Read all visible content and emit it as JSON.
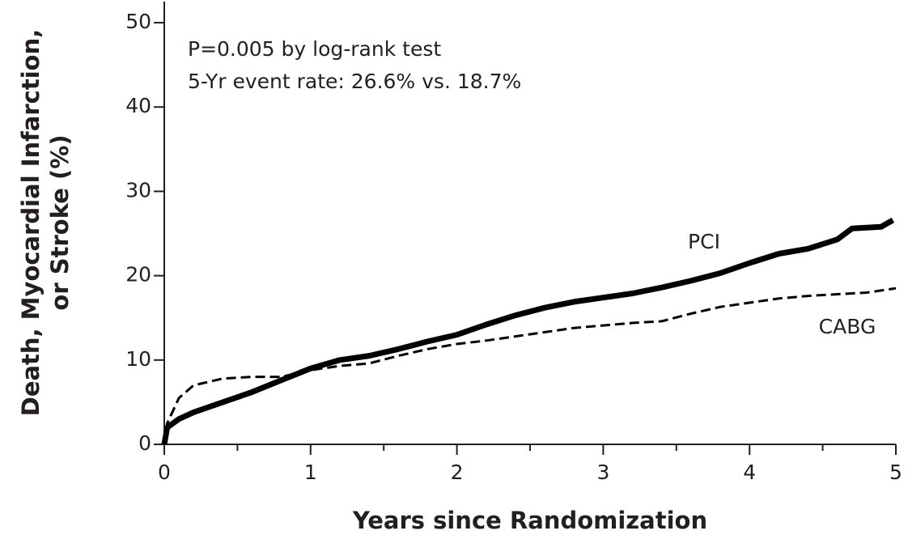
{
  "chart_data": {
    "type": "line",
    "annotations": [
      "P=0.005 by log-rank test",
      "5-Yr event rate: 26.6% vs. 18.7%"
    ],
    "x_label": "Years since Randomization",
    "y_label": [
      "Death, Myocardial Infarction,",
      "or Stroke (%)"
    ],
    "xlim": [
      0,
      5
    ],
    "xticks": [
      0,
      1,
      2,
      3,
      4,
      5
    ],
    "xminor_ticks": [
      0.5,
      1.5,
      2.5,
      3.5,
      4.5
    ],
    "ylim": [
      0,
      52.5
    ],
    "yticks": [
      0,
      10,
      20,
      30,
      40,
      50
    ],
    "series": [
      {
        "name": "PCI",
        "color": "#000000",
        "style": "solid",
        "x": [
          0,
          0.02,
          0.1,
          0.2,
          0.4,
          0.6,
          0.8,
          1,
          1.2,
          1.4,
          1.6,
          1.8,
          2,
          2.2,
          2.4,
          2.6,
          2.8,
          3,
          3.2,
          3.4,
          3.6,
          3.8,
          4,
          4.2,
          4.4,
          4.6,
          4.7,
          4.9,
          4.98
        ],
        "values": [
          0,
          2,
          3,
          3.8,
          5,
          6.2,
          7.6,
          9,
          10,
          10.5,
          11.3,
          12.2,
          13,
          14.2,
          15.3,
          16.2,
          16.9,
          17.4,
          17.9,
          18.6,
          19.4,
          20.3,
          21.5,
          22.6,
          23.2,
          24.3,
          25.6,
          25.8,
          26.6
        ]
      },
      {
        "name": "CABG",
        "color": "#000000",
        "style": "dashed",
        "x": [
          0,
          0.02,
          0.1,
          0.2,
          0.4,
          0.6,
          0.8,
          1,
          1.2,
          1.4,
          1.6,
          1.8,
          2,
          2.2,
          2.4,
          2.6,
          2.8,
          3,
          3.2,
          3.4,
          3.6,
          3.8,
          4,
          4.2,
          4.4,
          4.6,
          4.8,
          5
        ],
        "values": [
          0,
          2.5,
          5.5,
          7,
          7.8,
          8,
          8,
          8.8,
          9.3,
          9.6,
          10.5,
          11.3,
          11.9,
          12.3,
          12.8,
          13.3,
          13.8,
          14.1,
          14.4,
          14.6,
          15.5,
          16.3,
          16.8,
          17.3,
          17.6,
          17.8,
          18,
          18.5
        ]
      }
    ]
  }
}
